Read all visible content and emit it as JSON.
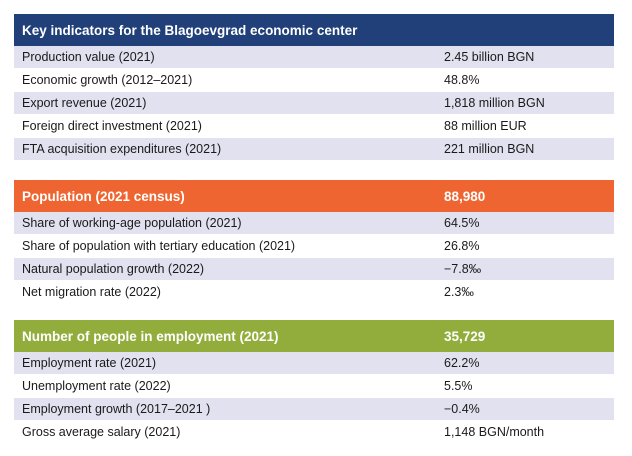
{
  "sections": [
    {
      "header": "Key indicators for the Blagoevgrad economic center",
      "header_value": "",
      "color": "#21407a",
      "rows": [
        {
          "label": "Production value (2021)",
          "value": "2.45 billion BGN"
        },
        {
          "label": "Economic growth (2012–2021)",
          "value": "48.8%"
        },
        {
          "label": "Export revenue (2021)",
          "value": "1,818 million BGN"
        },
        {
          "label": "Foreign direct investment (2021)",
          "value": "88 million EUR"
        },
        {
          "label": "FTA acquisition expenditures (2021)",
          "value": "221 million BGN"
        }
      ]
    },
    {
      "header": "Population (2021 census)",
      "header_value": "88,980",
      "color": "#ef6531",
      "rows": [
        {
          "label": "Share of working-age population (2021)",
          "value": "64.5%"
        },
        {
          "label": "Share of population with tertiary education (2021)",
          "value": "26.8%"
        },
        {
          "label": "Natural population growth (2022)",
          "value": "−7.8‰"
        },
        {
          "label": "Net migration rate (2022)",
          "value": "2.3‰"
        }
      ]
    },
    {
      "header": "Number of people in employment (2021)",
      "header_value": "35,729",
      "color": "#93ad3c",
      "rows": [
        {
          "label": "Employment rate (2021)",
          "value": "62.2%"
        },
        {
          "label": "Unemployment rate (2022)",
          "value": "5.5%"
        },
        {
          "label": "Employment growth (2017–2021 )",
          "value": "−0.4%"
        },
        {
          "label": "Gross average salary (2021)",
          "value": "1,148 BGN/month"
        }
      ]
    }
  ],
  "row_shade_color": "#e1e1ef"
}
